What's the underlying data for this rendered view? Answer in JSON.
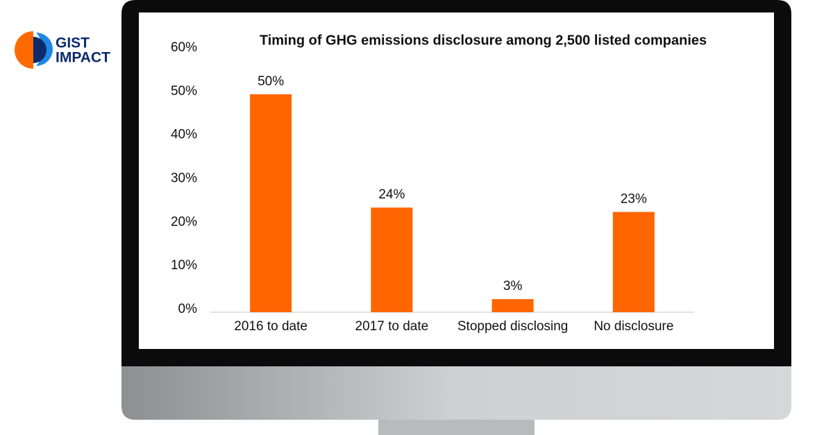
{
  "logo": {
    "line1": "GIST",
    "line2": "IMPACT"
  },
  "chart_data": {
    "type": "bar",
    "title": "Timing of GHG emissions disclosure among 2,500 listed companies",
    "categories": [
      "2016 to date",
      "2017 to date",
      "Stopped disclosing",
      "No disclosure"
    ],
    "values": [
      50,
      24,
      3,
      23
    ],
    "value_labels": [
      "50%",
      "24%",
      "3%",
      "23%"
    ],
    "color": "#ff6600",
    "ylim": [
      0,
      60
    ],
    "yticks": [
      {
        "value": 0,
        "label": "0%"
      },
      {
        "value": 10,
        "label": "10%"
      },
      {
        "value": 20,
        "label": "20%"
      },
      {
        "value": 30,
        "label": "30%"
      },
      {
        "value": 40,
        "label": "40%"
      },
      {
        "value": 50,
        "label": "50%"
      },
      {
        "value": 60,
        "label": "60%"
      }
    ],
    "grid": false
  }
}
